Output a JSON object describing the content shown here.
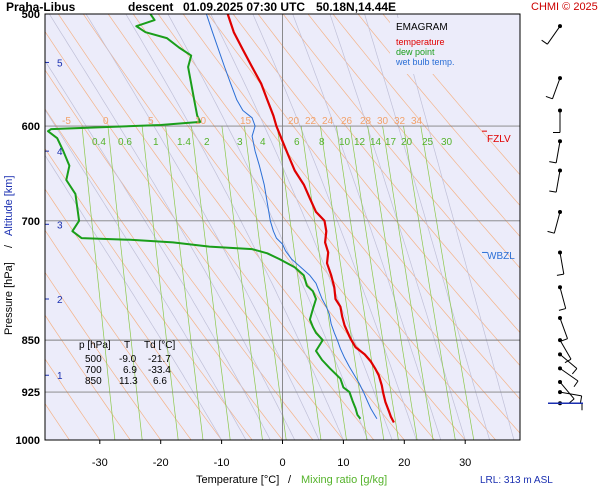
{
  "header": {
    "station": "Praha-Libus",
    "mode": "descent",
    "datetime": "01.09.2025 07:30 UTC",
    "location": "50.18N,14.44E",
    "credit": "CHMI © 2025"
  },
  "legend": {
    "title": "EMAGRAM",
    "temperature": "temperature",
    "dew_point": "dew point",
    "wet_bulb": "wet bulb temp.",
    "temperature_color": "#e00000",
    "dew_point_color": "#1a9e1a",
    "wet_bulb_color": "#2b6fd6"
  },
  "table": {
    "headers": [
      "p [hPa]",
      "T",
      "Td [°C]"
    ],
    "rows": [
      [
        "500",
        "-9.0",
        "-21.7"
      ],
      [
        "700",
        "6.9",
        "-33.4"
      ],
      [
        "850",
        "11.3",
        "6.6"
      ]
    ]
  },
  "labels": {
    "fzlv": "FZLV",
    "wbzl": "WBZL",
    "lrl": "LRL: 313 m ASL",
    "x_axis_label_temp": "Temperature [°C]",
    "x_axis_sep": "/",
    "x_axis_label_mix": "Mixing ratio [g/kg]",
    "y_axis_label_p": "Pressure [hPa]",
    "y_axis_sep": "/",
    "y_axis_label_alt": "Altitude [km]"
  },
  "chart_data": {
    "type": "line",
    "title": "Praha-Libus descent 01.09.2025 07:30 UTC 50.18N,14.44E",
    "xlabel": "Temperature [°C] / Mixing ratio [g/kg]",
    "ylabel": "Pressure [hPa] / Altitude [km]",
    "x_range": [
      -39,
      39
    ],
    "p_range": [
      500,
      1000
    ],
    "p_ticks": [
      500,
      600,
      700,
      850,
      925,
      1000
    ],
    "t_ticks": [
      -30,
      -20,
      -10,
      0,
      10,
      20,
      30
    ],
    "alt_ticks": [
      {
        "p": 541,
        "label": "5"
      },
      {
        "p": 625,
        "label": "4"
      },
      {
        "p": 704,
        "label": "3"
      },
      {
        "p": 795,
        "label": "2"
      },
      {
        "p": 900,
        "label": "1"
      }
    ],
    "dry_adiabat_labels": [
      "-5",
      "0",
      "5",
      "10",
      "15",
      "20",
      "22",
      "24",
      "26",
      "28",
      "30",
      "32",
      "34"
    ],
    "mixing_ratio_labels": [
      "0.4",
      "0.6",
      "1",
      "1.4",
      "2",
      "3",
      "4",
      "6",
      "8",
      "10",
      "12",
      "14",
      "17",
      "20",
      "25",
      "30"
    ],
    "series": [
      {
        "name": "temperature",
        "points": [
          [
            -9.0,
            500
          ],
          [
            -8.0,
            515
          ],
          [
            -6.5,
            530
          ],
          [
            -5.0,
            545
          ],
          [
            -3.5,
            560
          ],
          [
            -2.5,
            575
          ],
          [
            -1.5,
            590
          ],
          [
            -1.0,
            600
          ],
          [
            0.0,
            615
          ],
          [
            1.0,
            630
          ],
          [
            2.0,
            645
          ],
          [
            3.5,
            660
          ],
          [
            4.5,
            675
          ],
          [
            5.5,
            690
          ],
          [
            6.9,
            700
          ],
          [
            7.2,
            712
          ],
          [
            7.0,
            725
          ],
          [
            7.5,
            737
          ],
          [
            7.3,
            750
          ],
          [
            8.0,
            765
          ],
          [
            8.5,
            780
          ],
          [
            8.7,
            795
          ],
          [
            9.5,
            805
          ],
          [
            9.8,
            818
          ],
          [
            10.2,
            830
          ],
          [
            11.0,
            845
          ],
          [
            11.3,
            850
          ],
          [
            12.0,
            860
          ],
          [
            13.5,
            870
          ],
          [
            14.5,
            880
          ],
          [
            15.2,
            890
          ],
          [
            15.8,
            900
          ],
          [
            16.3,
            915
          ],
          [
            16.5,
            925
          ],
          [
            16.9,
            940
          ],
          [
            17.5,
            955
          ],
          [
            17.8,
            963
          ],
          [
            18.3,
            972
          ]
        ]
      },
      {
        "name": "dew point",
        "points": [
          [
            -21.7,
            500
          ],
          [
            -21.0,
            505
          ],
          [
            -24.0,
            510
          ],
          [
            -22.5,
            515
          ],
          [
            -19.0,
            520
          ],
          [
            -17.0,
            528
          ],
          [
            -15.0,
            535
          ],
          [
            -15.5,
            545
          ],
          [
            -15.0,
            560
          ],
          [
            -14.5,
            575
          ],
          [
            -14.0,
            590
          ],
          [
            -13.5,
            596
          ],
          [
            -20.0,
            599
          ],
          [
            -38.0,
            603
          ],
          [
            -38.5,
            605
          ],
          [
            -37.0,
            612
          ],
          [
            -36.0,
            625
          ],
          [
            -35.0,
            640
          ],
          [
            -35.5,
            655
          ],
          [
            -34.0,
            670
          ],
          [
            -33.4,
            700
          ],
          [
            -34.5,
            712
          ],
          [
            -33.0,
            720
          ],
          [
            -25.0,
            722
          ],
          [
            -18.0,
            725
          ],
          [
            -12.0,
            730
          ],
          [
            -5.0,
            733
          ],
          [
            -2.5,
            738
          ],
          [
            -0.5,
            745
          ],
          [
            2.0,
            755
          ],
          [
            3.5,
            765
          ],
          [
            4.0,
            778
          ],
          [
            5.0,
            785
          ],
          [
            5.5,
            795
          ],
          [
            5.0,
            808
          ],
          [
            4.5,
            822
          ],
          [
            5.0,
            832
          ],
          [
            5.5,
            840
          ],
          [
            6.6,
            850
          ],
          [
            5.5,
            865
          ],
          [
            6.5,
            878
          ],
          [
            7.8,
            890
          ],
          [
            9.5,
            905
          ],
          [
            10.0,
            918
          ],
          [
            11.0,
            925
          ],
          [
            11.5,
            938
          ],
          [
            12.0,
            950
          ],
          [
            12.3,
            960
          ],
          [
            12.8,
            966
          ]
        ]
      },
      {
        "name": "wet bulb temp.",
        "points": [
          [
            -12.5,
            500
          ],
          [
            -11.5,
            515
          ],
          [
            -10.5,
            530
          ],
          [
            -9.5,
            545
          ],
          [
            -8.5,
            560
          ],
          [
            -7.5,
            575
          ],
          [
            -6.5,
            585
          ],
          [
            -5.0,
            592
          ],
          [
            -4.5,
            600
          ],
          [
            -5.0,
            610
          ],
          [
            -4.5,
            625
          ],
          [
            -3.8,
            640
          ],
          [
            -3.0,
            660
          ],
          [
            -2.5,
            680
          ],
          [
            -2.0,
            700
          ],
          [
            -1.5,
            712
          ],
          [
            -1.0,
            720
          ],
          [
            0.0,
            727
          ],
          [
            0.5,
            735
          ],
          [
            1.5,
            745
          ],
          [
            3.0,
            755
          ],
          [
            4.5,
            765
          ],
          [
            5.5,
            775
          ],
          [
            6.0,
            785
          ],
          [
            6.5,
            795
          ],
          [
            7.2,
            805
          ],
          [
            7.7,
            815
          ],
          [
            8.0,
            828
          ],
          [
            8.5,
            840
          ],
          [
            9.0,
            850
          ],
          [
            9.5,
            862
          ],
          [
            10.2,
            875
          ],
          [
            11.0,
            888
          ],
          [
            11.8,
            900
          ],
          [
            12.6,
            912
          ],
          [
            13.3,
            925
          ],
          [
            14.0,
            940
          ],
          [
            14.5,
            950
          ],
          [
            15.0,
            958
          ],
          [
            15.5,
            966
          ]
        ]
      }
    ],
    "markers": [
      {
        "name": "FZLV",
        "p": 605
      },
      {
        "name": "WBZL",
        "p": 737
      }
    ],
    "wind_barbs_p": [
      510,
      555,
      585,
      615,
      645,
      690,
      737,
      780,
      820,
      850,
      870,
      890,
      910,
      925,
      942
    ],
    "grid": true
  }
}
